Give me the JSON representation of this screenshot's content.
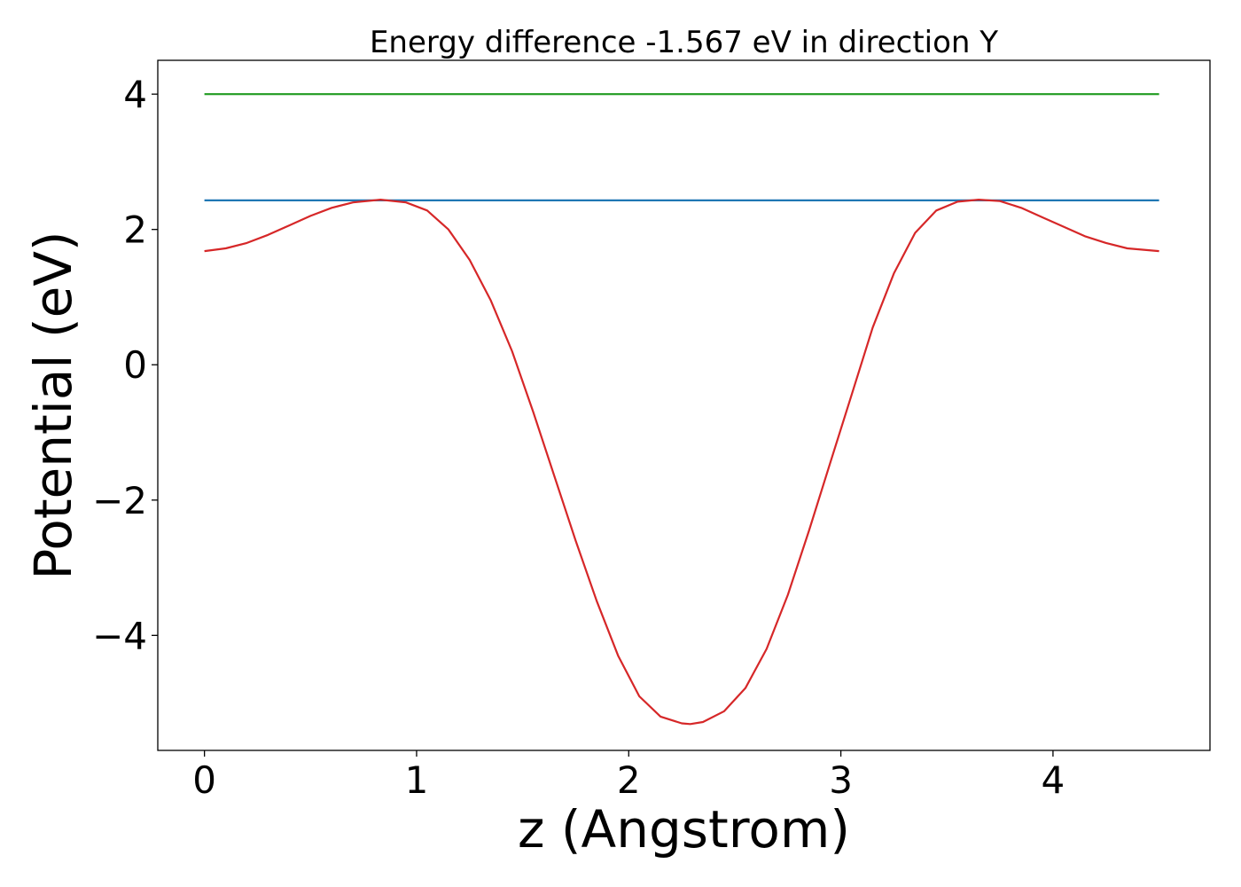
{
  "chart_data": {
    "type": "line",
    "title": "Energy difference -1.567 eV in direction Y",
    "xlabel": "z (Angstrom)",
    "ylabel": "Potential (eV)",
    "xlim": [
      -0.22,
      4.74
    ],
    "ylim": [
      -5.7,
      4.5
    ],
    "xticks": [
      0,
      1,
      2,
      3,
      4
    ],
    "xtick_labels": [
      "0",
      "1",
      "2",
      "3",
      "4"
    ],
    "yticks": [
      -4,
      -2,
      0,
      2,
      4
    ],
    "ytick_labels": [
      "−4",
      "−2",
      "0",
      "2",
      "4"
    ],
    "grid": false,
    "legend": "none",
    "series": [
      {
        "color": "#2ca02c",
        "x": [
          0,
          4.5
        ],
        "y": [
          4.0,
          4.0
        ]
      },
      {
        "color": "#1f77b4",
        "x": [
          0,
          4.5
        ],
        "y": [
          2.43,
          2.43
        ]
      },
      {
        "color": "#d62728",
        "x": [
          0,
          0.1,
          0.2,
          0.3,
          0.4,
          0.5,
          0.6,
          0.7,
          0.83,
          0.95,
          1.05,
          1.15,
          1.25,
          1.35,
          1.45,
          1.55,
          1.65,
          1.75,
          1.85,
          1.95,
          2.05,
          2.15,
          2.25,
          2.29,
          2.35,
          2.45,
          2.55,
          2.65,
          2.75,
          2.85,
          2.95,
          3.05,
          3.15,
          3.25,
          3.35,
          3.45,
          3.55,
          3.65,
          3.75,
          3.85,
          3.95,
          4.05,
          4.15,
          4.25,
          4.35,
          4.5
        ],
        "y": [
          1.68,
          1.72,
          1.8,
          1.92,
          2.06,
          2.2,
          2.32,
          2.4,
          2.44,
          2.4,
          2.28,
          2.0,
          1.55,
          0.95,
          0.2,
          -0.7,
          -1.65,
          -2.6,
          -3.5,
          -4.3,
          -4.9,
          -5.2,
          -5.3,
          -5.31,
          -5.28,
          -5.12,
          -4.78,
          -4.2,
          -3.4,
          -2.45,
          -1.45,
          -0.45,
          0.55,
          1.35,
          1.95,
          2.28,
          2.41,
          2.44,
          2.42,
          2.32,
          2.18,
          2.04,
          1.9,
          1.8,
          1.72,
          1.68
        ]
      }
    ]
  }
}
